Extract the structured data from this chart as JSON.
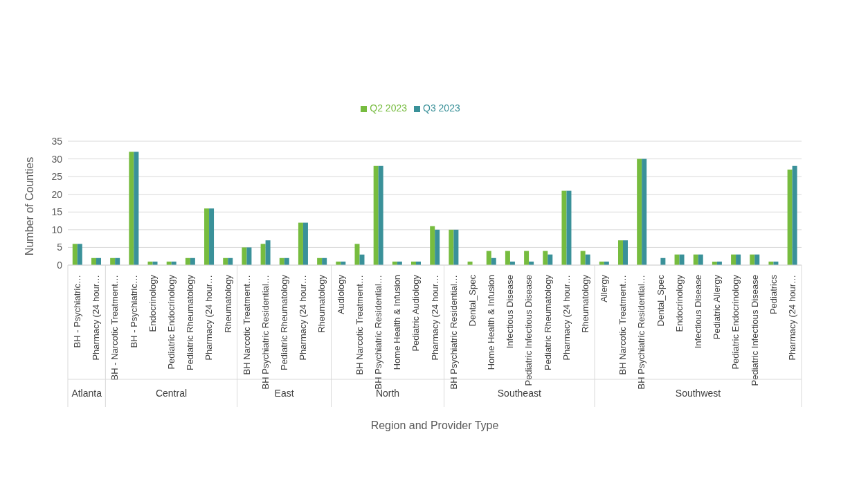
{
  "chart_data": {
    "type": "bar",
    "xlabel": "Region and Provider Type",
    "ylabel": "Number of Counties",
    "categories": [
      "BH - Psychiatric…",
      "Pharmacy (24 hour…",
      "BH - Narcotic Treatment…",
      "BH - Psychiatric…",
      "Endocrinology",
      "Pediatric Endocrinology",
      "Pediatric Rheumatology",
      "Pharmacy (24 hour…",
      "Rheumatology",
      "BH Narcotic Treatment…",
      "BH Psychiatric Residential…",
      "Pediatric Rheumatology",
      "Pharmacy (24 hour…",
      "Rheumatology",
      "Audiology",
      "BH Narcotic Treatment…",
      "BH Psychiatric Residential…",
      "Home Health & Infusion",
      "Pediatric Audiology",
      "Pharmacy (24 hour…",
      "BH Psychiatric Residential…",
      "Dental_Spec",
      "Home Health & Infusion",
      "Infectious Disease",
      "Pediatric Infectious Disease",
      "Pediatric Rheumatology",
      "Pharmacy (24 hour…",
      "Rheumatology",
      "Allergy",
      "BH Narcotic Treatment…",
      "BH Psychiatric Residential…",
      "Dental_Spec",
      "Endocrinology",
      "Infectious Disease",
      "Pediatric Allergy",
      "Pediatric Endocrinology",
      "Pediatric Infectious Disease",
      "Pediatrics",
      "Pharmacy (24 hour…"
    ],
    "series": [
      {
        "name": "Q2 2023",
        "color": "#77bc3f",
        "values": [
          6,
          2,
          2,
          32,
          1,
          1,
          2,
          16,
          2,
          5,
          6,
          2,
          12,
          2,
          1,
          6,
          28,
          1,
          1,
          11,
          10,
          1,
          4,
          4,
          4,
          4,
          21,
          4,
          1,
          7,
          30,
          0,
          3,
          3,
          1,
          3,
          3,
          1,
          27
        ]
      },
      {
        "name": "Q3 2023",
        "color": "#3a9199",
        "values": [
          6,
          2,
          2,
          32,
          1,
          1,
          2,
          16,
          2,
          5,
          7,
          2,
          12,
          2,
          1,
          3,
          28,
          1,
          1,
          10,
          10,
          0,
          2,
          1,
          1,
          3,
          21,
          3,
          1,
          7,
          30,
          2,
          3,
          3,
          1,
          3,
          3,
          1,
          28
        ]
      }
    ],
    "annotations": [
      "Atlanta",
      "Central",
      "East",
      "North",
      "Southeast",
      "Southwest"
    ],
    "ylim": [
      0,
      35
    ],
    "yticks": [
      0,
      5,
      10,
      15,
      20,
      25,
      30,
      35
    ],
    "grid": "y",
    "legend": "top"
  }
}
